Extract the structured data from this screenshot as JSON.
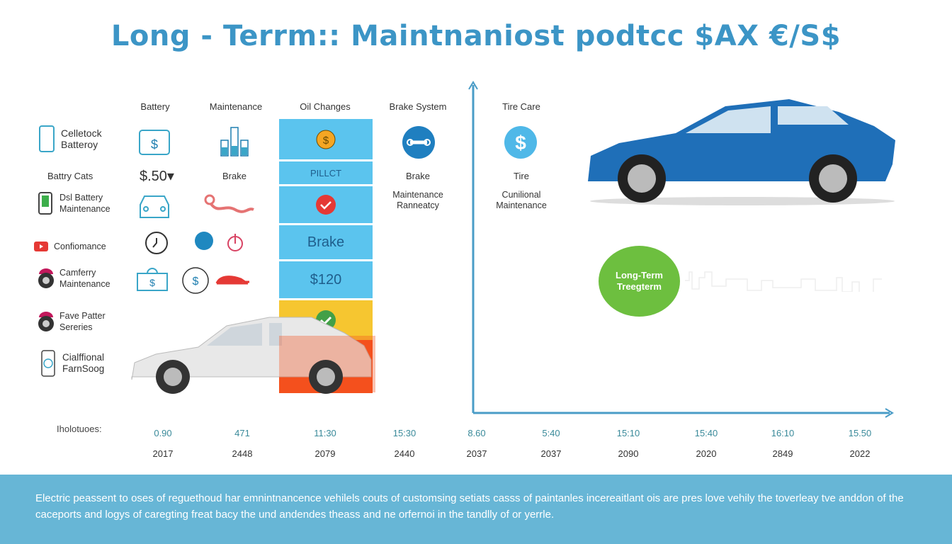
{
  "title": "Long - Terrm:: Maintnaniost podtcc $AX €/S$",
  "column_headers": [
    "Battery",
    "Maintenance",
    "Oil Changes",
    "Brake System",
    "Tire Care"
  ],
  "left_items": [
    {
      "label": "Celletock\nBatteroy",
      "icon": "phone-icon"
    },
    {
      "label": "Battry Cats",
      "icon": ""
    },
    {
      "label": "Dsl Battery\nMaintenance",
      "icon": "battery-device-icon"
    },
    {
      "label": "Confiomance",
      "icon": "play-icon"
    },
    {
      "label": "Camferry\nMaintenance",
      "icon": "tire-icon"
    },
    {
      "label": "Fave Patter\nSereries",
      "icon": "tire-icon"
    },
    {
      "label": "Cialffional\nFarnSoog",
      "icon": "phone-icon"
    }
  ],
  "battery_col": {
    "price": "$.50▾",
    "icons": [
      "battery-dollar-icon",
      "car-front-icon",
      "clock-icon",
      "lock-dollar-icon"
    ]
  },
  "maintenance_col": {
    "label": "Brake",
    "icons": [
      "bottles-icon",
      "hose-icon",
      "gear-head-icon",
      "power-icon",
      "globe-dollar-icon",
      "red-car-icon"
    ]
  },
  "oil_col": {
    "segments": [
      "PILLCT",
      "Brake",
      "$120"
    ],
    "icons": [
      "coin-icon",
      "check-badge-icon",
      "check-circle-icon"
    ]
  },
  "brake_col": {
    "title": "Brake",
    "sub": "Maintenance\nRanneatcy",
    "icon": "wrench-icon"
  },
  "tire_col": {
    "title": "Tire",
    "sub": "Cunilional\nMaintenance",
    "icon": "dollar-circle-icon"
  },
  "badge": "Long-Term\nTreegterm",
  "row_label": "Iholotuoes:",
  "values": [
    "0.90",
    "471",
    "11:30",
    "15:30",
    "8.60",
    "5:40",
    "15:10",
    "15:40",
    "16:10",
    "15.50"
  ],
  "years": [
    "2017",
    "2448",
    "2079",
    "2440",
    "2037",
    "2037",
    "2090",
    "2020",
    "2849",
    "2022"
  ],
  "footer": "Electric peassent to oses of reguethoud har emnintnancence vehilels couts of customsing setiats casss of paintanles incereaitlant ois are pres love vehily the toverleay tve anddon of the caceports and logys of caregting freat bacy the und andendes theass and ne orfernoi in the tandlly of or yerrle.",
  "colors": {
    "title": "#3c95c6",
    "oil_blue": "#5bc4ee",
    "yellow": "#f6c630",
    "orange_red": "#f4511e",
    "badge_green": "#6dbf3f",
    "banner": "#67b6d6",
    "car_blue": "#1f6fb8",
    "axis": "#4a9cc7"
  }
}
